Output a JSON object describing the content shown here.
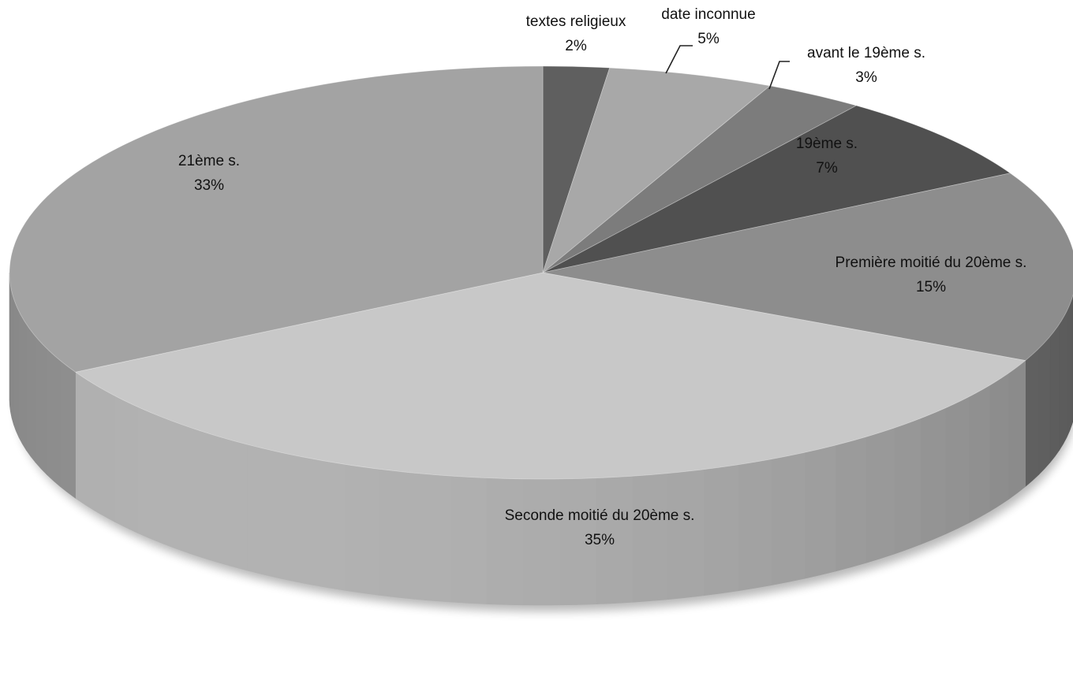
{
  "chart_data": {
    "type": "pie",
    "style": "3d",
    "slices": [
      {
        "label": "textes religieux",
        "value_label": "2%",
        "value": 2,
        "color": "#5f5f5f"
      },
      {
        "label": "date inconnue",
        "value_label": "5%",
        "value": 5,
        "color": "#a8a8a8"
      },
      {
        "label": "avant le 19ème s.",
        "value_label": "3%",
        "value": 3,
        "color": "#7c7c7c"
      },
      {
        "label": "19ème s.",
        "value_label": "7%",
        "value": 7,
        "color": "#505050"
      },
      {
        "label": "Première moitié du 20ème s.",
        "value_label": "15%",
        "value": 15,
        "color": "#8d8d8d"
      },
      {
        "label": "Seconde moitié du 20ème s.",
        "value_label": "35%",
        "value": 35,
        "color": "#c8c8c8"
      },
      {
        "label": "21ème s.",
        "value_label": "33%",
        "value": 33,
        "color": "#a3a3a3"
      }
    ]
  }
}
